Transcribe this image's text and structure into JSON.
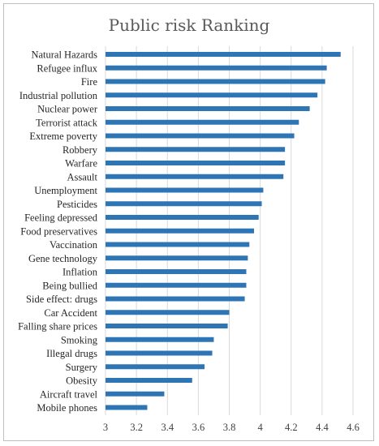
{
  "chart_data": {
    "type": "bar",
    "orientation": "horizontal",
    "title": "Public risk Ranking",
    "xlabel": "",
    "ylabel": "",
    "xlim": [
      3,
      4.6
    ],
    "xticks": [
      "3",
      "3.2",
      "3.4",
      "3.6",
      "3.8",
      "4",
      "4.2",
      "4.4",
      "4.6"
    ],
    "grid": true,
    "bar_color": "#2e75b6",
    "grid_color": "#d9d9d9",
    "categories": [
      "Natural Hazards",
      "Refugee influx",
      "Fire",
      "Industrial pollution",
      "Nuclear power",
      "Terrorist attack",
      "Extreme poverty",
      "Robbery",
      "Warfare",
      "Assault",
      "Unemployment",
      "Pesticides",
      "Feeling depressed",
      "Food preservatives",
      "Vaccination",
      "Gene technology",
      "Inflation",
      "Being bullied",
      "Side effect: drugs",
      "Car Accident",
      "Falling share prices",
      "Smoking",
      "Illegal drugs",
      "Surgery",
      "Obesity",
      "Aircraft travel",
      "Mobile phones"
    ],
    "values": [
      4.52,
      4.43,
      4.42,
      4.37,
      4.32,
      4.25,
      4.22,
      4.16,
      4.16,
      4.15,
      4.02,
      4.01,
      3.99,
      3.96,
      3.93,
      3.92,
      3.91,
      3.91,
      3.9,
      3.8,
      3.79,
      3.7,
      3.69,
      3.64,
      3.56,
      3.38,
      3.27
    ]
  }
}
